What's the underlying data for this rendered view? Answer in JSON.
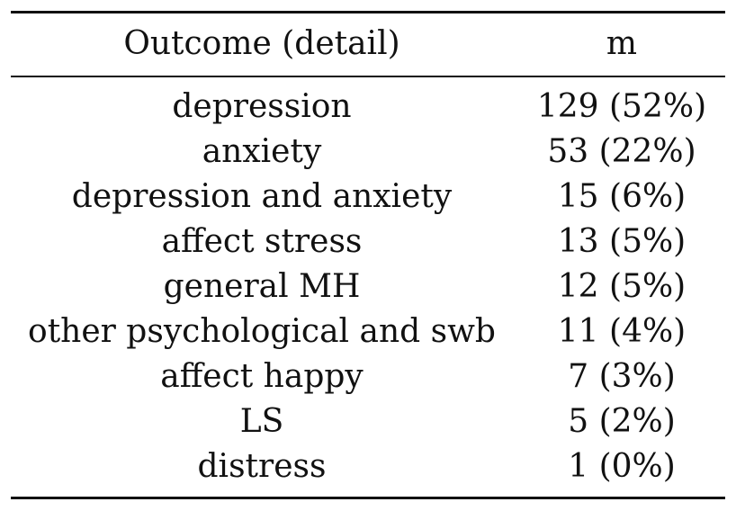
{
  "table": {
    "headers": {
      "outcome": "Outcome (detail)",
      "m": "m"
    },
    "rows": [
      {
        "outcome": "depression",
        "m": "129 (52%)"
      },
      {
        "outcome": "anxiety",
        "m": "53 (22%)"
      },
      {
        "outcome": "depression and anxiety",
        "m": "15 (6%)"
      },
      {
        "outcome": "affect stress",
        "m": "13 (5%)"
      },
      {
        "outcome": "general MH",
        "m": "12 (5%)"
      },
      {
        "outcome": "other psychological and swb",
        "m": "11 (4%)"
      },
      {
        "outcome": "affect happy",
        "m": "7 (3%)"
      },
      {
        "outcome": "LS",
        "m": "5 (2%)"
      },
      {
        "outcome": "distress",
        "m": "1 (0%)"
      }
    ]
  }
}
